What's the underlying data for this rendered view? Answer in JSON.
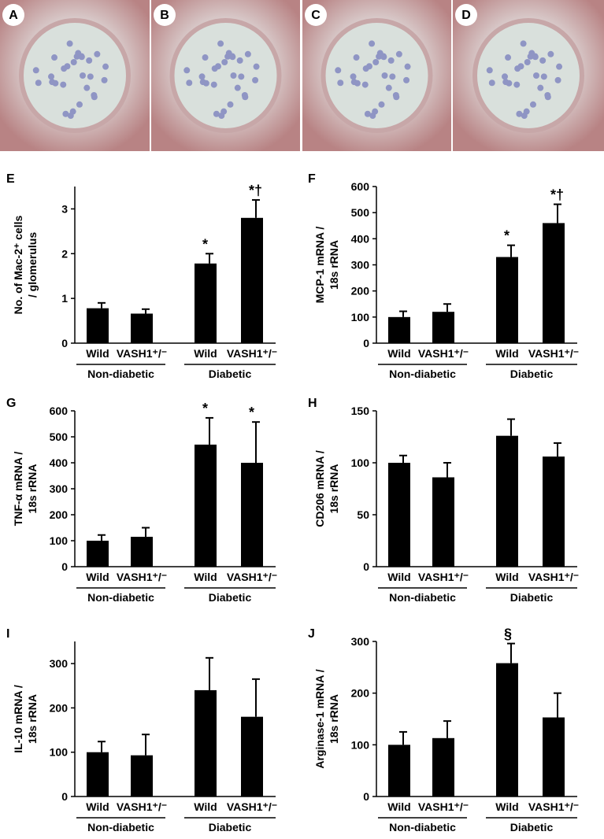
{
  "images": [
    {
      "label": "A"
    },
    {
      "label": "B"
    },
    {
      "label": "C"
    },
    {
      "label": "D"
    }
  ],
  "chart_data": [
    {
      "type": "bar",
      "panel": "E",
      "ylabel": [
        "No. of Mac-2⁺ cells",
        "/ glomerulus"
      ],
      "categories": [
        "Wild",
        "VASH1⁺/⁻",
        "Wild",
        "VASH1⁺/⁻"
      ],
      "groups": [
        "Non-diabetic",
        "Diabetic"
      ],
      "values": [
        0.78,
        0.66,
        1.78,
        2.8
      ],
      "errors": [
        0.12,
        0.1,
        0.22,
        0.4
      ],
      "markers": [
        null,
        null,
        "*",
        "*†"
      ],
      "color": "#000000",
      "ylim": [
        0,
        3.5
      ],
      "yticks": [
        0,
        1,
        2,
        3
      ]
    },
    {
      "type": "bar",
      "panel": "F",
      "ylabel": [
        "MCP-1 mRNA /",
        "18s rRNA"
      ],
      "categories": [
        "Wild",
        "VASH1⁺/⁻",
        "Wild",
        "VASH1⁺/⁻"
      ],
      "groups": [
        "Non-diabetic",
        "Diabetic"
      ],
      "values": [
        100,
        120,
        330,
        460
      ],
      "errors": [
        22,
        30,
        45,
        72
      ],
      "markers": [
        null,
        null,
        "*",
        "*†"
      ],
      "color": "#000000",
      "ylim": [
        0,
        600
      ],
      "yticks": [
        0,
        100,
        200,
        300,
        400,
        500,
        600
      ]
    },
    {
      "type": "bar",
      "panel": "G",
      "ylabel": [
        "TNF-α mRNA /",
        "18s rRNA"
      ],
      "categories": [
        "Wild",
        "VASH1⁺/⁻",
        "Wild",
        "VASH1⁺/⁻"
      ],
      "groups": [
        "Non-diabetic",
        "Diabetic"
      ],
      "values": [
        100,
        115,
        470,
        400
      ],
      "errors": [
        22,
        35,
        103,
        157
      ],
      "markers": [
        null,
        null,
        "*",
        "*"
      ],
      "color": "#000000",
      "ylim": [
        0,
        600
      ],
      "yticks": [
        0,
        100,
        200,
        300,
        400,
        500,
        600
      ]
    },
    {
      "type": "bar",
      "panel": "H",
      "ylabel": [
        "CD206 mRNA /",
        "18s rRNA"
      ],
      "categories": [
        "Wild",
        "VASH1⁺/⁻",
        "Wild",
        "VASH1⁺/⁻"
      ],
      "groups": [
        "Non-diabetic",
        "Diabetic"
      ],
      "values": [
        100,
        86,
        126,
        106
      ],
      "errors": [
        7,
        14,
        16,
        13
      ],
      "markers": [
        null,
        null,
        null,
        null
      ],
      "color": "#000000",
      "ylim": [
        0,
        150
      ],
      "yticks": [
        0,
        50,
        100,
        150
      ]
    },
    {
      "type": "bar",
      "panel": "I",
      "ylabel": [
        "IL-10 mRNA /",
        "18s rRNA"
      ],
      "categories": [
        "Wild",
        "VASH1⁺/⁻",
        "Wild",
        "VASH1⁺/⁻"
      ],
      "groups": [
        "Non-diabetic",
        "Diabetic"
      ],
      "values": [
        100,
        93,
        240,
        180
      ],
      "errors": [
        24,
        47,
        73,
        85
      ],
      "markers": [
        null,
        null,
        null,
        null
      ],
      "color": "#000000",
      "ylim": [
        0,
        350
      ],
      "yticks": [
        0,
        100,
        200,
        300
      ]
    },
    {
      "type": "bar",
      "panel": "J",
      "ylabel": [
        "Arginase-1 mRNA /",
        "18s rRNA"
      ],
      "categories": [
        "Wild",
        "VASH1⁺/⁻",
        "Wild",
        "VASH1⁺/⁻"
      ],
      "groups": [
        "Non-diabetic",
        "Diabetic"
      ],
      "values": [
        100,
        113,
        258,
        153
      ],
      "errors": [
        25,
        33,
        38,
        47
      ],
      "markers": [
        null,
        null,
        "§",
        null
      ],
      "color": "#000000",
      "ylim": [
        0,
        300
      ],
      "yticks": [
        0,
        100,
        200,
        300
      ]
    }
  ]
}
